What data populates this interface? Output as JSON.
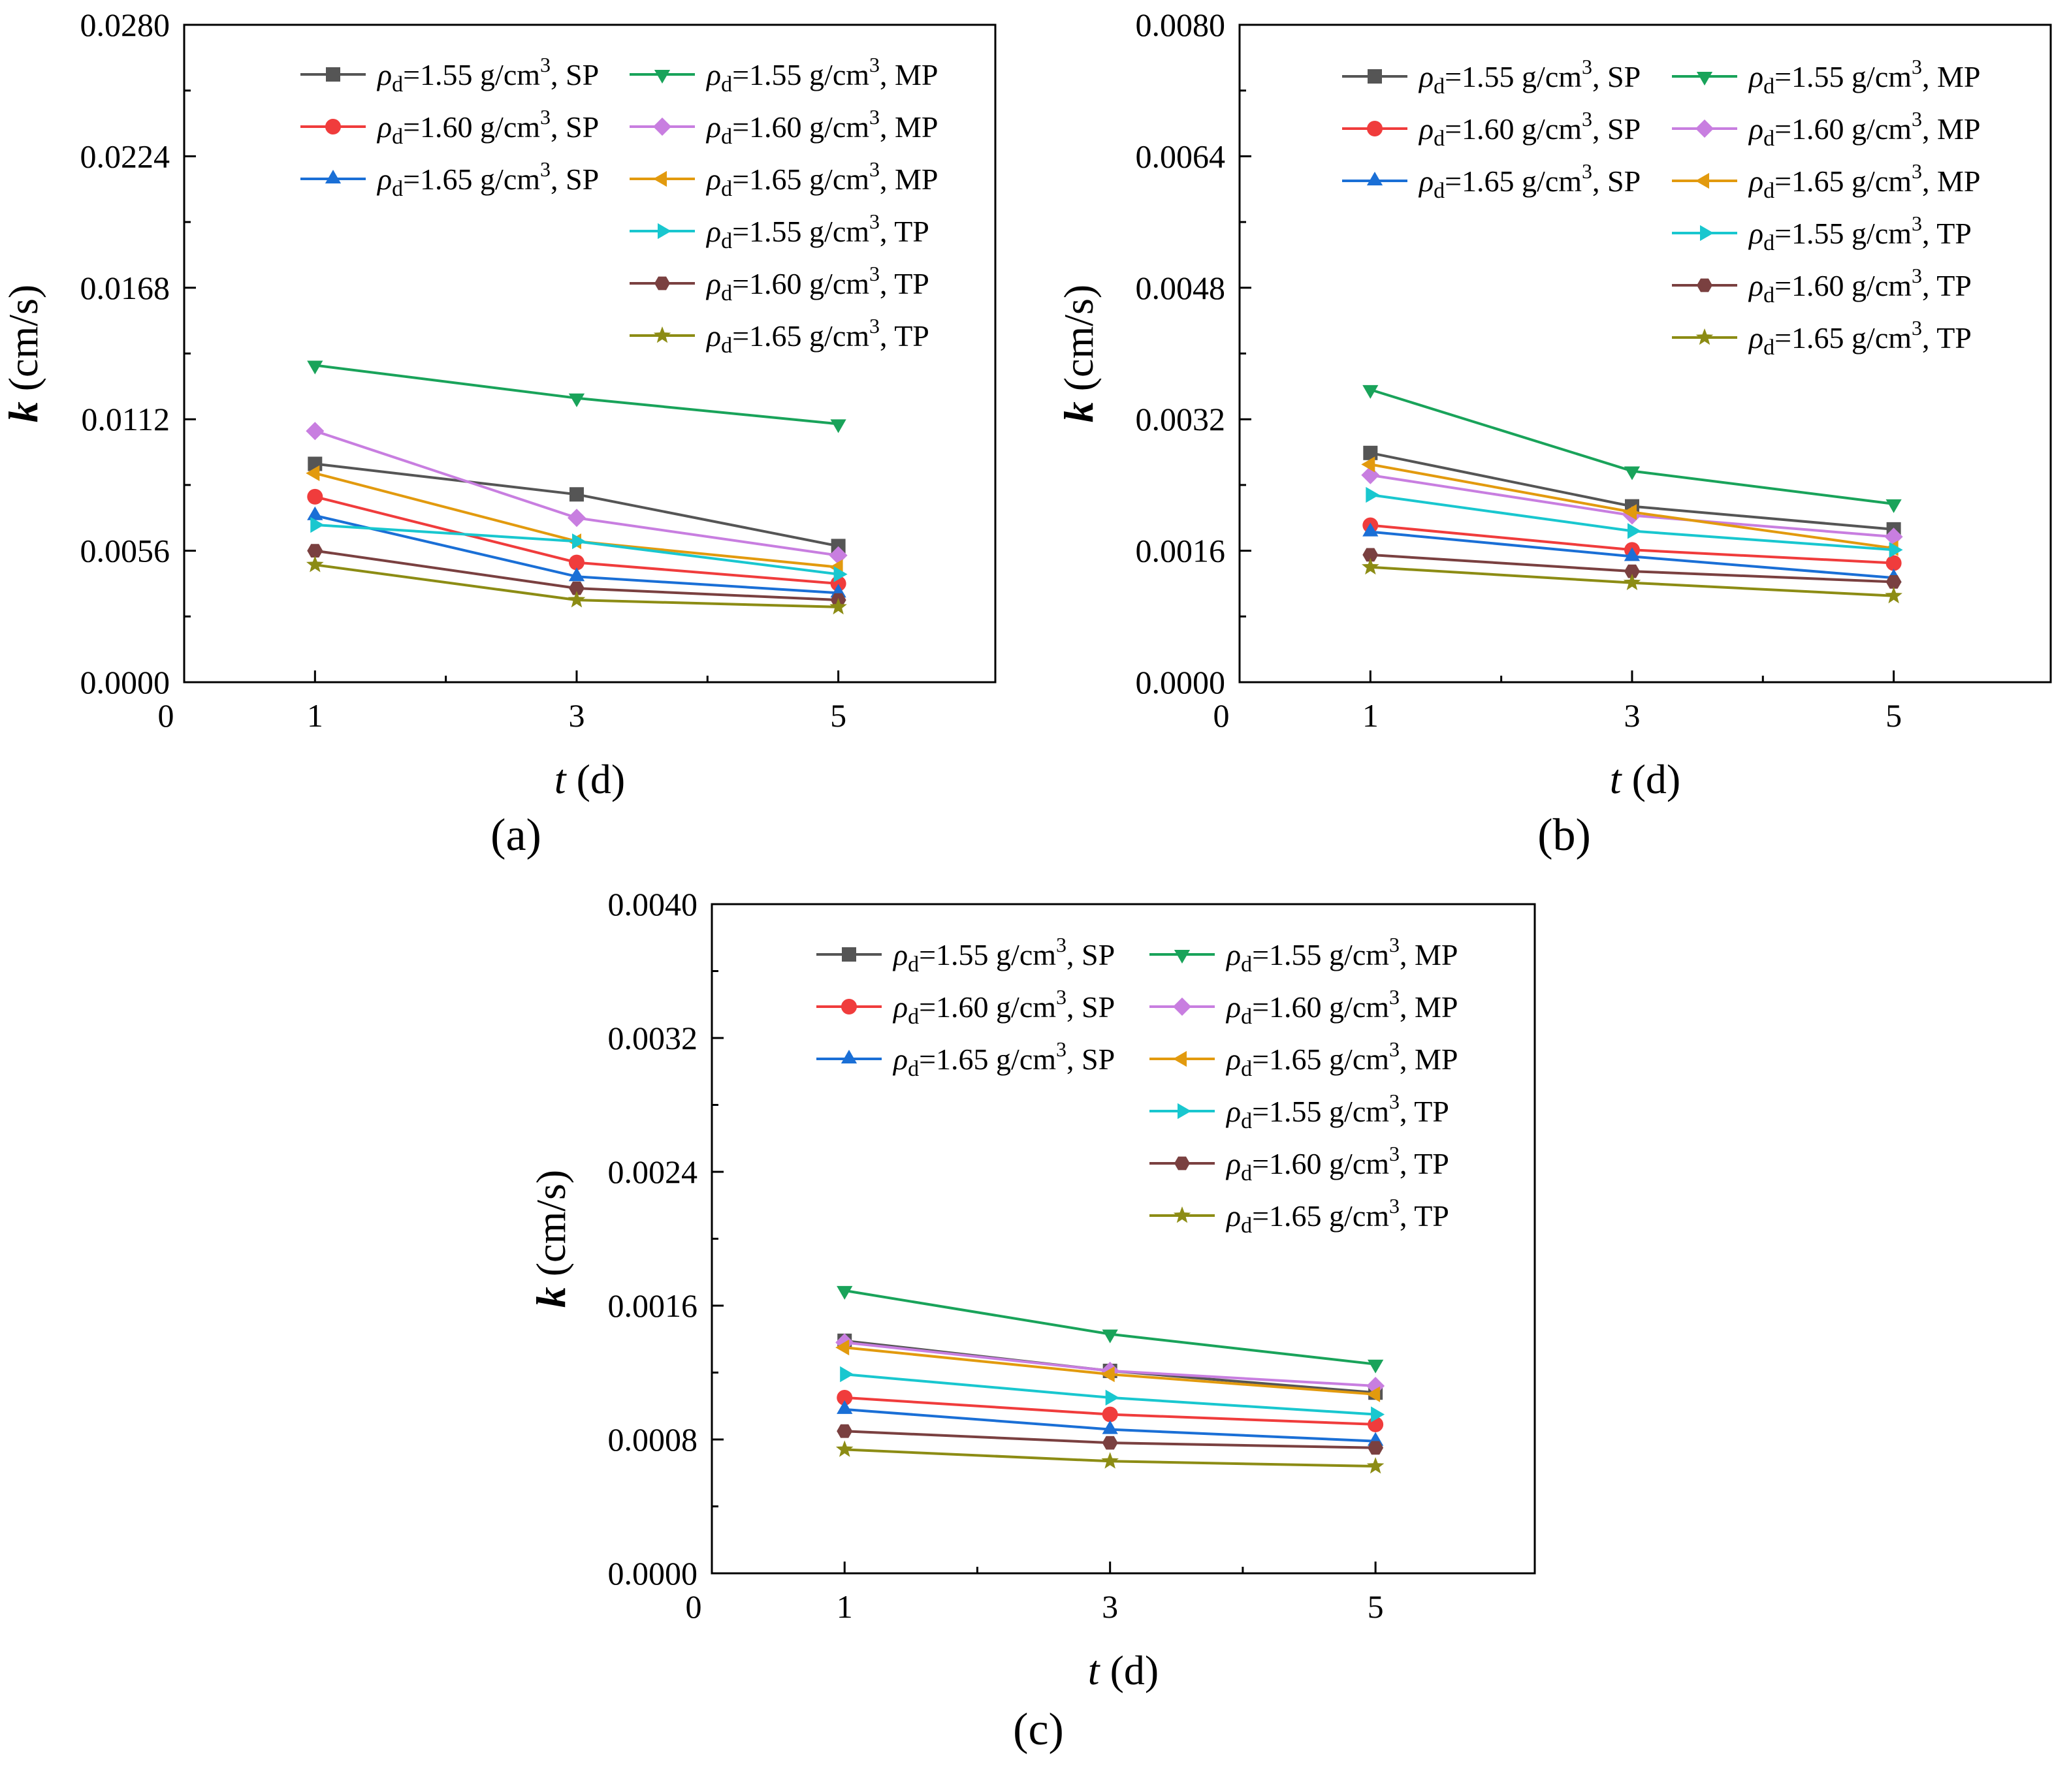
{
  "figure": {
    "series_legend": [
      {
        "rho": "1.55",
        "pack": "SP",
        "color": "#555555",
        "marker": "square"
      },
      {
        "rho": "1.60",
        "pack": "SP",
        "color": "#f03c3c",
        "marker": "circle"
      },
      {
        "rho": "1.65",
        "pack": "SP",
        "color": "#1a6fd6",
        "marker": "triangle-up"
      },
      {
        "rho": "1.55",
        "pack": "MP",
        "color": "#19a35a",
        "marker": "triangle-down"
      },
      {
        "rho": "1.60",
        "pack": "MP",
        "color": "#c87ee0",
        "marker": "diamond"
      },
      {
        "rho": "1.65",
        "pack": "MP",
        "color": "#e29a0e",
        "marker": "triangle-left"
      },
      {
        "rho": "1.55",
        "pack": "TP",
        "color": "#19c7cf",
        "marker": "triangle-right"
      },
      {
        "rho": "1.60",
        "pack": "TP",
        "color": "#7a4040",
        "marker": "hexagon"
      },
      {
        "rho": "1.65",
        "pack": "TP",
        "color": "#8c8c14",
        "marker": "star"
      }
    ],
    "legend_symbol": "ρ",
    "legend_subscript": "d",
    "legend_unit": "g/cm",
    "legend_unit_sup": "3"
  },
  "chart_data": [
    {
      "type": "line",
      "panel_label": "(a)",
      "xlabel_var": "t",
      "xlabel_unit": "(d)",
      "ylabel_var": "k",
      "ylabel_unit": "(cm/s)",
      "xlim": [
        0,
        6.2
      ],
      "ylim": [
        0,
        0.028
      ],
      "x_ticks": [
        "0",
        "1",
        "3",
        "5"
      ],
      "y_ticks": [
        "0.0000",
        "0.0056",
        "0.0112",
        "0.0168",
        "0.0224",
        "0.0280"
      ],
      "x": [
        1,
        3,
        5
      ],
      "series": [
        {
          "name": "ρd=1.55 g/cm3, SP",
          "values": [
            0.0093,
            0.008,
            0.0058
          ]
        },
        {
          "name": "ρd=1.60 g/cm3, SP",
          "values": [
            0.0079,
            0.0051,
            0.0042
          ]
        },
        {
          "name": "ρd=1.65 g/cm3, SP",
          "values": [
            0.0071,
            0.0045,
            0.0038
          ]
        },
        {
          "name": "ρd=1.55 g/cm3, MP",
          "values": [
            0.0135,
            0.0121,
            0.011
          ]
        },
        {
          "name": "ρd=1.60 g/cm3, MP",
          "values": [
            0.0107,
            0.007,
            0.0054
          ]
        },
        {
          "name": "ρd=1.65 g/cm3, MP",
          "values": [
            0.0089,
            0.006,
            0.0049
          ]
        },
        {
          "name": "ρd=1.55 g/cm3, TP",
          "values": [
            0.0067,
            0.006,
            0.0046
          ]
        },
        {
          "name": "ρd=1.60 g/cm3, TP",
          "values": [
            0.0056,
            0.004,
            0.0035
          ]
        },
        {
          "name": "ρd=1.65 g/cm3, TP",
          "values": [
            0.005,
            0.0035,
            0.0032
          ]
        }
      ]
    },
    {
      "type": "line",
      "panel_label": "(b)",
      "xlabel_var": "t",
      "xlabel_unit": "(d)",
      "ylabel_var": "k",
      "ylabel_unit": "(cm/s)",
      "xlim": [
        0,
        6.2
      ],
      "ylim": [
        0,
        0.008
      ],
      "x_ticks": [
        "0",
        "1",
        "3",
        "5"
      ],
      "y_ticks": [
        "0.0000",
        "0.0016",
        "0.0032",
        "0.0048",
        "0.0064",
        "0.0080"
      ],
      "x": [
        1,
        3,
        5
      ],
      "series": [
        {
          "name": "ρd=1.55 g/cm3, SP",
          "values": [
            0.00279,
            0.00214,
            0.00186
          ]
        },
        {
          "name": "ρd=1.60 g/cm3, SP",
          "values": [
            0.00191,
            0.00161,
            0.00145
          ]
        },
        {
          "name": "ρd=1.65 g/cm3, SP",
          "values": [
            0.00183,
            0.00153,
            0.00127
          ]
        },
        {
          "name": "ρd=1.55 g/cm3, MP",
          "values": [
            0.00356,
            0.00257,
            0.00217
          ]
        },
        {
          "name": "ρd=1.60 g/cm3, MP",
          "values": [
            0.00252,
            0.00203,
            0.00177
          ]
        },
        {
          "name": "ρd=1.65 g/cm3, MP",
          "values": [
            0.00265,
            0.00207,
            0.00163
          ]
        },
        {
          "name": "ρd=1.55 g/cm3, TP",
          "values": [
            0.00228,
            0.00184,
            0.00161
          ]
        },
        {
          "name": "ρd=1.60 g/cm3, TP",
          "values": [
            0.00155,
            0.00135,
            0.00122
          ]
        },
        {
          "name": "ρd=1.65 g/cm3, TP",
          "values": [
            0.0014,
            0.00121,
            0.00105
          ]
        }
      ]
    },
    {
      "type": "line",
      "panel_label": "(c)",
      "xlabel_var": "t",
      "xlabel_unit": "(d)",
      "ylabel_var": "k",
      "ylabel_unit": "(cm/s)",
      "xlim": [
        0,
        6.2
      ],
      "ylim": [
        0,
        0.004
      ],
      "x_ticks": [
        "0",
        "1",
        "3",
        "5"
      ],
      "y_ticks": [
        "0.0000",
        "0.0008",
        "0.0016",
        "0.0024",
        "0.0032",
        "0.0040"
      ],
      "x": [
        1,
        3,
        5
      ],
      "series": [
        {
          "name": "ρd=1.55 g/cm3, SP",
          "values": [
            0.00139,
            0.00121,
            0.00108
          ]
        },
        {
          "name": "ρd=1.60 g/cm3, SP",
          "values": [
            0.00105,
            0.00095,
            0.00089
          ]
        },
        {
          "name": "ρd=1.65 g/cm3, SP",
          "values": [
            0.00098,
            0.00086,
            0.00079
          ]
        },
        {
          "name": "ρd=1.55 g/cm3, MP",
          "values": [
            0.00169,
            0.00143,
            0.00125
          ]
        },
        {
          "name": "ρd=1.60 g/cm3, MP",
          "values": [
            0.00138,
            0.00121,
            0.00112
          ]
        },
        {
          "name": "ρd=1.65 g/cm3, MP",
          "values": [
            0.00135,
            0.00119,
            0.00107
          ]
        },
        {
          "name": "ρd=1.55 g/cm3, TP",
          "values": [
            0.00119,
            0.00105,
            0.00095
          ]
        },
        {
          "name": "ρd=1.60 g/cm3, TP",
          "values": [
            0.00085,
            0.00078,
            0.00075
          ]
        },
        {
          "name": "ρd=1.65 g/cm3, TP",
          "values": [
            0.00074,
            0.00067,
            0.00064
          ]
        }
      ]
    }
  ]
}
